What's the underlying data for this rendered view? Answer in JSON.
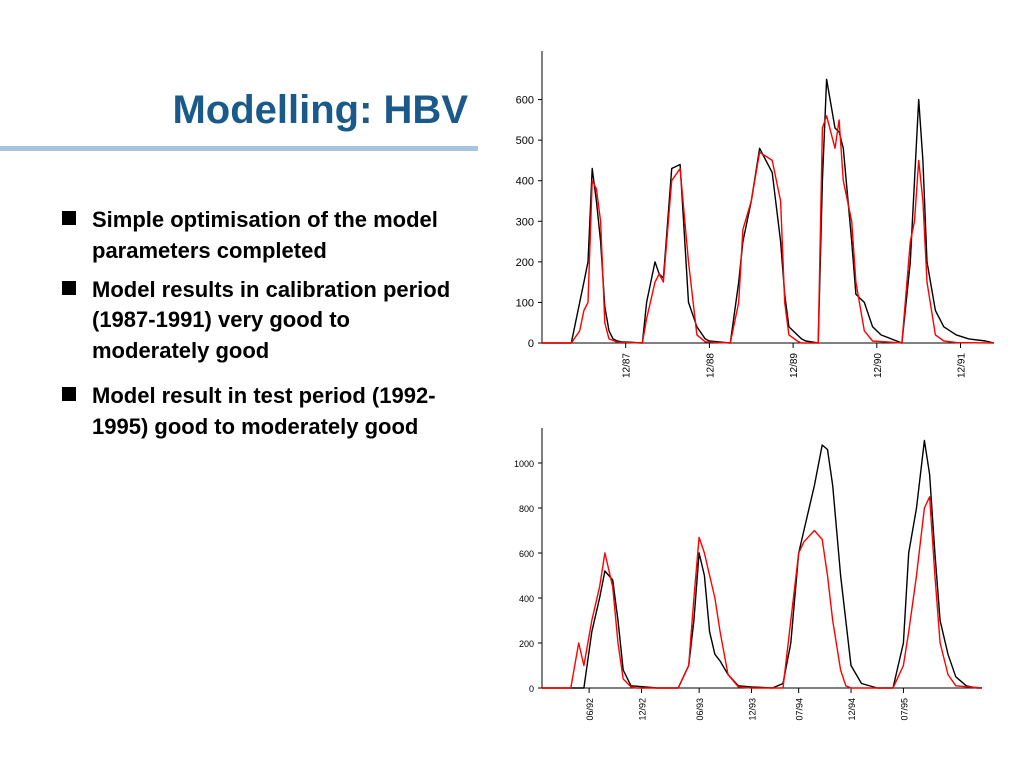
{
  "slide": {
    "title": "Modelling: HBV",
    "bullets": [
      "Simple optimisation of the model parameters completed",
      "Model results in calibration period (1987-1991) very good to moderately good",
      "Model result in test period (1992-1995) good to moderately good"
    ]
  },
  "colors": {
    "title": "#1a5a8a",
    "rule": "#a9c4de",
    "observed": "#000000",
    "simulated": "#ff0000"
  },
  "chart_data": [
    {
      "type": "line",
      "title": "",
      "xlabel": "",
      "ylabel": "",
      "ylim": [
        0,
        700
      ],
      "xlim": [
        0,
        5.4
      ],
      "yticks": [
        0,
        100,
        200,
        300,
        400,
        500,
        600
      ],
      "xtick_labels": [
        {
          "pos": 1.0,
          "label": "12/87"
        },
        {
          "pos": 2.0,
          "label": "12/88"
        },
        {
          "pos": 3.0,
          "label": "12/89"
        },
        {
          "pos": 4.0,
          "label": "12/90"
        },
        {
          "pos": 5.0,
          "label": "12/91"
        }
      ],
      "series": [
        {
          "color": "#000000",
          "x": [
            0,
            0.35,
            0.45,
            0.5,
            0.55,
            0.6,
            0.65,
            0.7,
            0.75,
            0.8,
            0.85,
            0.9,
            0.95,
            1.05,
            1.2,
            1.25,
            1.35,
            1.4,
            1.45,
            1.55,
            1.65,
            1.75,
            1.85,
            1.95,
            2.0,
            2.1,
            2.25,
            2.35,
            2.4,
            2.5,
            2.6,
            2.75,
            2.85,
            2.9,
            2.95,
            3.05,
            3.1,
            3.15,
            3.3,
            3.35,
            3.4,
            3.5,
            3.55,
            3.6,
            3.7,
            3.75,
            3.85,
            3.95,
            4.05,
            4.3,
            4.4,
            4.45,
            4.5,
            4.55,
            4.6,
            4.7,
            4.8,
            4.95,
            5.1,
            5.3,
            5.4
          ],
          "y": [
            0,
            0,
            100,
            150,
            200,
            430,
            350,
            250,
            90,
            30,
            10,
            5,
            3,
            2,
            0,
            100,
            200,
            170,
            160,
            430,
            440,
            100,
            40,
            10,
            5,
            3,
            0,
            150,
            250,
            350,
            480,
            420,
            250,
            120,
            40,
            20,
            10,
            5,
            0,
            400,
            650,
            530,
            520,
            480,
            250,
            120,
            100,
            40,
            20,
            0,
            200,
            400,
            600,
            450,
            200,
            80,
            40,
            20,
            10,
            5,
            0
          ]
        },
        {
          "color": "#ff0000",
          "x": [
            0,
            0.35,
            0.45,
            0.5,
            0.55,
            0.6,
            0.65,
            0.7,
            0.75,
            0.8,
            0.9,
            1.05,
            1.2,
            1.25,
            1.35,
            1.4,
            1.45,
            1.55,
            1.65,
            1.75,
            1.85,
            1.95,
            2.1,
            2.25,
            2.35,
            2.4,
            2.5,
            2.6,
            2.75,
            2.85,
            2.9,
            2.95,
            3.05,
            3.1,
            3.3,
            3.35,
            3.4,
            3.5,
            3.55,
            3.6,
            3.7,
            3.75,
            3.85,
            3.95,
            4.3,
            4.4,
            4.45,
            4.5,
            4.55,
            4.6,
            4.7,
            4.8,
            4.95,
            5.4
          ],
          "y": [
            0,
            0,
            30,
            80,
            100,
            400,
            380,
            300,
            50,
            10,
            2,
            1,
            0,
            60,
            150,
            170,
            150,
            400,
            430,
            200,
            20,
            3,
            1,
            0,
            100,
            280,
            350,
            470,
            450,
            350,
            100,
            20,
            5,
            0,
            0,
            530,
            560,
            480,
            550,
            400,
            300,
            150,
            30,
            5,
            0,
            250,
            300,
            450,
            350,
            150,
            20,
            5,
            1,
            0
          ]
        }
      ]
    },
    {
      "type": "line",
      "title": "",
      "xlabel": "",
      "ylabel": "",
      "ylim": [
        0,
        1120
      ],
      "xlim": [
        0,
        8.4
      ],
      "yticks": [
        0,
        200,
        400,
        600,
        800,
        1000
      ],
      "xtick_labels": [
        {
          "pos": 0.9,
          "label": "06/92"
        },
        {
          "pos": 1.9,
          "label": "12/92"
        },
        {
          "pos": 3.0,
          "label": "06/93"
        },
        {
          "pos": 4.0,
          "label": "12/93"
        },
        {
          "pos": 4.9,
          "label": "07/94"
        },
        {
          "pos": 5.9,
          "label": "12/94"
        },
        {
          "pos": 6.9,
          "label": "07/95"
        }
      ],
      "series": [
        {
          "color": "#000000",
          "x": [
            0,
            0.55,
            0.8,
            0.95,
            1.1,
            1.2,
            1.35,
            1.45,
            1.55,
            1.7,
            2.2,
            2.4,
            2.6,
            2.8,
            2.9,
            3.0,
            3.1,
            3.2,
            3.3,
            3.4,
            3.55,
            3.75,
            4.0,
            4.4,
            4.6,
            4.75,
            4.9,
            5.0,
            5.2,
            5.35,
            5.45,
            5.55,
            5.7,
            5.9,
            6.1,
            6.4,
            6.7,
            6.8,
            6.9,
            7.0,
            7.15,
            7.3,
            7.4,
            7.5,
            7.6,
            7.75,
            7.9,
            8.1,
            8.3,
            8.4
          ],
          "y": [
            0,
            0,
            0,
            250,
            400,
            520,
            480,
            300,
            80,
            10,
            0,
            0,
            0,
            100,
            300,
            600,
            500,
            250,
            150,
            120,
            60,
            10,
            5,
            0,
            20,
            200,
            600,
            700,
            900,
            1080,
            1060,
            900,
            500,
            100,
            20,
            0,
            0,
            100,
            200,
            600,
            800,
            1100,
            950,
            600,
            300,
            150,
            50,
            10,
            0,
            0
          ]
        },
        {
          "color": "#ff0000",
          "x": [
            0,
            0.55,
            0.7,
            0.8,
            0.95,
            1.1,
            1.2,
            1.35,
            1.45,
            1.55,
            1.7,
            1.8,
            2.2,
            2.6,
            2.8,
            2.9,
            3.0,
            3.1,
            3.2,
            3.3,
            3.4,
            3.55,
            3.75,
            4.0,
            4.6,
            4.75,
            4.9,
            5.0,
            5.2,
            5.35,
            5.45,
            5.55,
            5.7,
            5.8,
            5.9,
            6.4,
            6.7,
            6.8,
            6.9,
            7.0,
            7.15,
            7.3,
            7.4,
            7.5,
            7.6,
            7.75,
            7.9,
            8.4
          ],
          "y": [
            0,
            0,
            200,
            100,
            300,
            450,
            600,
            450,
            200,
            40,
            5,
            0,
            0,
            0,
            100,
            400,
            670,
            600,
            500,
            400,
            250,
            60,
            5,
            0,
            0,
            300,
            600,
            650,
            700,
            660,
            500,
            300,
            80,
            10,
            0,
            0,
            0,
            50,
            100,
            250,
            500,
            800,
            850,
            500,
            200,
            60,
            10,
            0
          ]
        }
      ]
    }
  ]
}
